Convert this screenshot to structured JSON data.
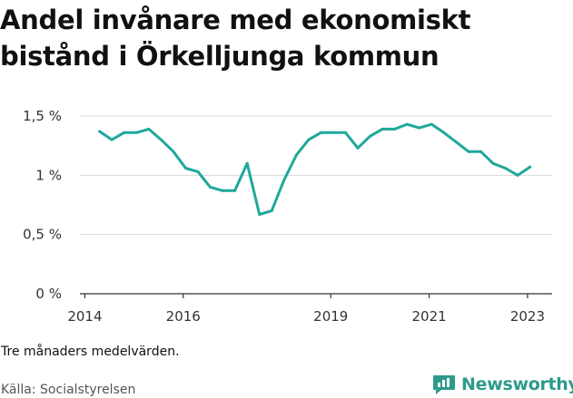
{
  "title": "Andel invånare med ekonomiskt bistånd i Örkelljunga kommun",
  "note": "Tre månaders medelvärden.",
  "source": "Källa: Socialstyrelsen",
  "brand": {
    "name": "Newsworthy",
    "icon": "newsworthy-logo-icon",
    "color": "#2d9a8c"
  },
  "chart_data": {
    "type": "line",
    "title": "Andel invånare med ekonomiskt bistånd i Örkelljunga kommun",
    "xlabel": "",
    "ylabel": "",
    "xlim": [
      2013.9,
      2023.5
    ],
    "ylim": [
      0,
      1.5
    ],
    "yticks": [
      {
        "value": 0,
        "label": "0 %"
      },
      {
        "value": 0.5,
        "label": "0,5 %"
      },
      {
        "value": 1,
        "label": "1 %"
      },
      {
        "value": 1.5,
        "label": "1,5 %"
      }
    ],
    "xticks": [
      {
        "value": 2014,
        "label": "2014"
      },
      {
        "value": 2016,
        "label": "2016"
      },
      {
        "value": 2019,
        "label": "2019"
      },
      {
        "value": 2021,
        "label": "2021"
      },
      {
        "value": 2023,
        "label": "2023"
      }
    ],
    "grid": true,
    "line_color": "#1fa89b",
    "series": [
      {
        "x": [
          2014.3,
          2014.55,
          2014.8,
          2015.05,
          2015.3,
          2015.55,
          2015.8,
          2016.05,
          2016.3,
          2016.55,
          2016.8,
          2017.05,
          2017.3,
          2017.55,
          2017.8,
          2018.05,
          2018.3,
          2018.55,
          2018.8,
          2019.05,
          2019.3,
          2019.55,
          2019.8,
          2020.05,
          2020.3,
          2020.55,
          2020.8,
          2021.05,
          2021.3,
          2021.55,
          2021.8,
          2022.05,
          2022.3,
          2022.55,
          2022.8,
          2023.05
        ],
        "values": [
          1.37,
          1.3,
          1.36,
          1.36,
          1.39,
          1.3,
          1.2,
          1.06,
          1.03,
          0.9,
          0.87,
          0.87,
          1.1,
          0.67,
          0.7,
          0.96,
          1.17,
          1.3,
          1.36,
          1.36,
          1.36,
          1.23,
          1.33,
          1.39,
          1.39,
          1.43,
          1.4,
          1.43,
          1.36,
          1.28,
          1.2,
          1.2,
          1.1,
          1.06,
          1.0,
          1.07
        ]
      }
    ]
  }
}
